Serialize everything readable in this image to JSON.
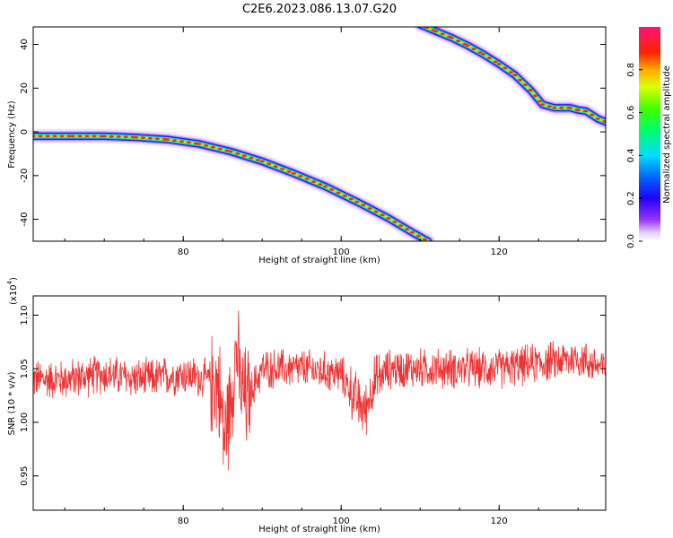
{
  "page_title": "C2E6.2023.086.13.07.G20",
  "colors": {
    "snr_line": "#ee3333",
    "axis": "#000000",
    "background": "#ffffff"
  },
  "chart_data": [
    {
      "type": "heatmap",
      "title": "C2E6.2023.086.13.07.G20",
      "xlabel": "Height of straight line (km)",
      "ylabel": "Frequency (Hz)",
      "xlim": [
        61,
        133.5
      ],
      "ylim": [
        -50,
        48
      ],
      "xticks": [
        80,
        100,
        120
      ],
      "xtick_labels": [
        "80",
        "100",
        "120"
      ],
      "yticks": [
        -40,
        -20,
        0,
        20,
        40
      ],
      "ytick_labels": [
        "-40",
        "-20",
        "0",
        "20",
        "40"
      ],
      "grid": false,
      "colorbar": {
        "label": "Normalized spectral amplitude",
        "range": [
          0,
          1
        ],
        "ticks": [
          0.0,
          0.2,
          0.4,
          0.6,
          0.8
        ],
        "tick_labels": [
          "0.0",
          "0.2",
          "0.4",
          "0.6",
          "0.8"
        ],
        "colormap": "rainbow (violet→blue→cyan→green→yellow→red→magenta)"
      },
      "series": [
        {
          "x": [
            61,
            66,
            70,
            74,
            78,
            82,
            86,
            90,
            94,
            98,
            102,
            106,
            109,
            111
          ],
          "y": [
            -2,
            -2,
            -2,
            -2.5,
            -3.5,
            -5.5,
            -9,
            -13.5,
            -19,
            -25,
            -32,
            -39.5,
            -46,
            -50
          ]
        },
        {
          "x": [
            110,
            112,
            114,
            116,
            118,
            120,
            122,
            124,
            125.5,
            127,
            129,
            130,
            131,
            132.5,
            133.5
          ],
          "y": [
            49,
            46,
            43,
            39.5,
            35.5,
            31,
            26,
            19,
            12.5,
            11,
            11,
            10,
            9.5,
            6,
            4.5
          ]
        }
      ]
    },
    {
      "type": "line",
      "title": "",
      "xlabel": "Height of straight line (km)",
      "ylabel": "SNR (10 * v/v)",
      "y_multiplier_label": "(x10",
      "y_multiplier_exp": "4",
      "y_multiplier_close": ")",
      "xlim": [
        61,
        133.5
      ],
      "ylim": [
        0.918,
        1.118
      ],
      "xticks": [
        80,
        100,
        120
      ],
      "xtick_labels": [
        "80",
        "100",
        "120"
      ],
      "yticks": [
        0.95,
        1.0,
        1.05,
        1.1
      ],
      "ytick_labels": [
        "0.95",
        "1.00",
        "1.05",
        "1.10"
      ],
      "grid": false,
      "series": [
        {
          "x": [
            61,
            65,
            70,
            75,
            80,
            83,
            84.5,
            85.2,
            86,
            86.7,
            87.3,
            88,
            90,
            95,
            100,
            102,
            103,
            104,
            106,
            110,
            115,
            120,
            125,
            130,
            133.5
          ],
          "y": [
            1.04,
            1.04,
            1.045,
            1.04,
            1.045,
            1.04,
            1.035,
            0.985,
            1.02,
            1.07,
            1.03,
            1.02,
            1.05,
            1.05,
            1.045,
            1.02,
            1.01,
            1.035,
            1.05,
            1.05,
            1.05,
            1.05,
            1.055,
            1.06,
            1.05
          ]
        }
      ]
    }
  ]
}
